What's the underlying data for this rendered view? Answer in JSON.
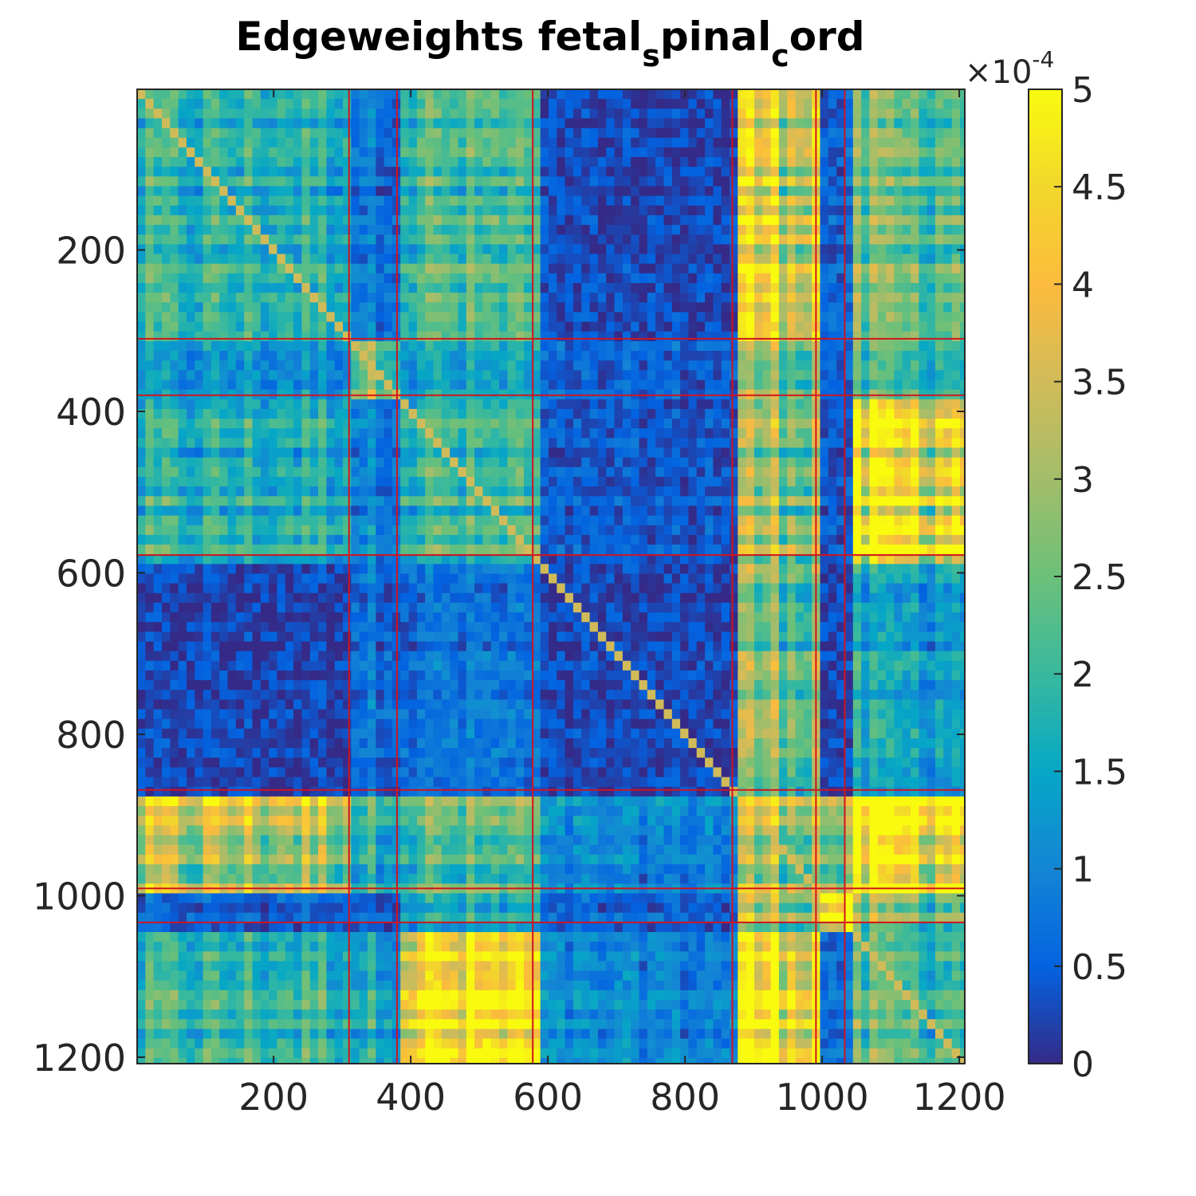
{
  "chart_data": {
    "type": "heatmap",
    "title_parts": [
      "Edgeweights fetal",
      "s",
      "pinal",
      "c",
      "ord"
    ],
    "xlabel": "",
    "ylabel": "",
    "x_range": [
      1,
      1208
    ],
    "y_range": [
      1,
      1208
    ],
    "x_ticks": [
      200,
      400,
      600,
      800,
      1000,
      1200
    ],
    "y_ticks": [
      200,
      400,
      600,
      800,
      1000,
      1200
    ],
    "x_tick_labels": [
      "200",
      "400",
      "600",
      "800",
      "1000",
      "1200"
    ],
    "y_tick_labels": [
      "200",
      "400",
      "600",
      "800",
      "1000",
      "1200"
    ],
    "block_boundaries": [
      310,
      380,
      578,
      869,
      991,
      1033
    ],
    "block_boundary_color": "#d0141e",
    "block_mean_levels": [
      [
        0.35,
        0.15,
        0.4,
        0.05,
        0.75,
        0.1,
        0.45
      ],
      [
        0.25,
        0.55,
        0.3,
        0.1,
        0.55,
        0.1,
        0.4
      ],
      [
        0.35,
        0.2,
        0.4,
        0.08,
        0.6,
        0.08,
        0.85
      ],
      [
        0.05,
        0.15,
        0.15,
        0.05,
        0.55,
        0.05,
        0.3
      ],
      [
        0.65,
        0.4,
        0.45,
        0.2,
        0.65,
        0.55,
        0.95
      ],
      [
        0.1,
        0.1,
        0.3,
        0.1,
        0.6,
        1.0,
        0.5
      ],
      [
        0.4,
        0.35,
        0.9,
        0.2,
        0.97,
        0.15,
        0.45
      ]
    ],
    "colorbar": {
      "min": 0,
      "max": 5,
      "ticks": [
        0,
        0.5,
        1,
        1.5,
        2,
        2.5,
        3,
        3.5,
        4,
        4.5,
        5
      ],
      "tick_labels": [
        "0",
        "0.5",
        "1",
        "1.5",
        "2",
        "2.5",
        "3",
        "3.5",
        "4",
        "4.5",
        "5"
      ],
      "scale_base": "×10",
      "scale_exponent": "-4",
      "colormap": "parula"
    }
  }
}
